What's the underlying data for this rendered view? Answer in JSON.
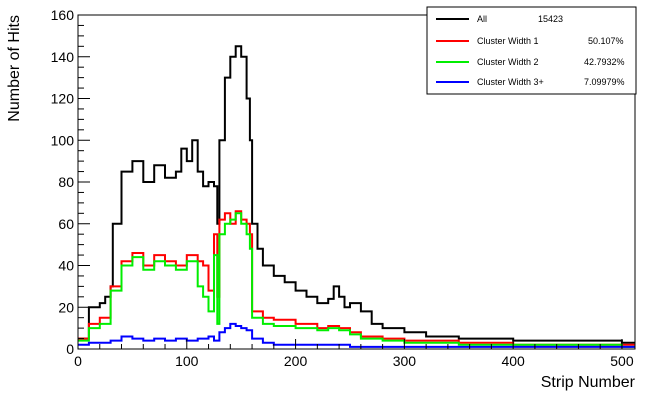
{
  "chart_data": {
    "type": "line",
    "title": "",
    "xlabel": "Strip Number",
    "ylabel": "Number of Hits",
    "xlim": [
      0,
      512
    ],
    "ylim": [
      0,
      160
    ],
    "x_ticks": [
      0,
      100,
      200,
      300,
      400,
      500
    ],
    "y_ticks": [
      0,
      20,
      40,
      60,
      80,
      100,
      120,
      140,
      160
    ],
    "grid": false,
    "legend_position": "top-right",
    "series": [
      {
        "name": "All",
        "stat": "15423",
        "color": "#000000",
        "x": [
          0,
          10,
          20,
          25,
          30,
          32,
          40,
          50,
          60,
          70,
          80,
          90,
          95,
          100,
          105,
          110,
          115,
          120,
          125,
          128,
          130,
          135,
          140,
          145,
          150,
          155,
          158,
          160,
          165,
          170,
          180,
          190,
          200,
          210,
          220,
          230,
          235,
          240,
          245,
          250,
          260,
          270,
          280,
          300,
          320,
          350,
          400,
          450,
          500,
          512
        ],
        "y": [
          5,
          20,
          22,
          25,
          30,
          60,
          85,
          90,
          80,
          88,
          82,
          85,
          96,
          90,
          100,
          85,
          78,
          80,
          78,
          60,
          100,
          130,
          140,
          145,
          140,
          120,
          100,
          60,
          48,
          40,
          35,
          32,
          28,
          25,
          22,
          24,
          30,
          25,
          20,
          22,
          18,
          12,
          10,
          8,
          6,
          5,
          4,
          4,
          3,
          3
        ]
      },
      {
        "name": "Cluster Width 1",
        "stat": "50.107%",
        "color": "#ff0000",
        "x": [
          0,
          10,
          20,
          30,
          40,
          50,
          60,
          70,
          80,
          90,
          100,
          110,
          115,
          120,
          125,
          128,
          130,
          135,
          140,
          145,
          150,
          155,
          158,
          160,
          170,
          180,
          200,
          220,
          230,
          240,
          250,
          260,
          280,
          300,
          350,
          400,
          450,
          500,
          512
        ],
        "y": [
          5,
          12,
          15,
          30,
          42,
          46,
          40,
          45,
          42,
          40,
          45,
          42,
          40,
          28,
          55,
          25,
          62,
          65,
          60,
          66,
          62,
          60,
          55,
          18,
          15,
          14,
          12,
          10,
          11,
          10,
          8,
          6,
          5,
          4,
          3,
          2,
          2,
          2,
          2
        ]
      },
      {
        "name": "Cluster Width 2",
        "stat": "42.7932%",
        "color": "#00ee00",
        "x": [
          0,
          10,
          20,
          30,
          40,
          50,
          60,
          70,
          80,
          90,
          100,
          110,
          115,
          120,
          125,
          128,
          130,
          135,
          140,
          145,
          150,
          155,
          158,
          160,
          170,
          180,
          200,
          220,
          230,
          240,
          250,
          260,
          280,
          300,
          350,
          400,
          450,
          500,
          512
        ],
        "y": [
          4,
          10,
          12,
          28,
          40,
          44,
          38,
          42,
          40,
          38,
          42,
          30,
          25,
          18,
          45,
          12,
          55,
          60,
          62,
          65,
          60,
          55,
          48,
          15,
          12,
          11,
          10,
          9,
          10,
          9,
          7,
          5,
          4,
          3,
          2,
          2,
          2,
          1,
          1
        ]
      },
      {
        "name": "Cluster Width 3+",
        "stat": "7.09979%",
        "color": "#0000ff",
        "x": [
          0,
          10,
          20,
          30,
          40,
          50,
          60,
          70,
          80,
          90,
          100,
          110,
          120,
          125,
          130,
          135,
          140,
          145,
          150,
          155,
          160,
          170,
          180,
          200,
          250,
          300,
          350,
          400,
          450,
          500,
          512
        ],
        "y": [
          2,
          3,
          3,
          4,
          6,
          5,
          4,
          5,
          4,
          5,
          4,
          5,
          6,
          4,
          8,
          10,
          12,
          11,
          10,
          9,
          5,
          3,
          2,
          2,
          1,
          1,
          1,
          1,
          1,
          1,
          1
        ]
      }
    ]
  }
}
